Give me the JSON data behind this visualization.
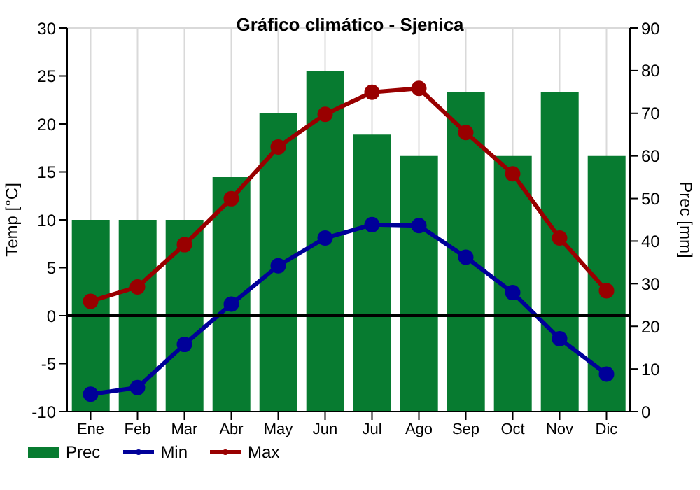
{
  "chart_data": {
    "type": "bar",
    "title": "Gráfico climático - Sjenica",
    "ylabel": "Temp [°C]",
    "y2label": "Prec [mm]",
    "categories": [
      "Ene",
      "Feb",
      "Mar",
      "Abr",
      "May",
      "Jun",
      "Jul",
      "Ago",
      "Sep",
      "Oct",
      "Nov",
      "Dic"
    ],
    "series": [
      {
        "name": "Prec",
        "axis": "y2",
        "color": "#077b30",
        "values": [
          45,
          45,
          45,
          55,
          70,
          80,
          65,
          60,
          75,
          60,
          75,
          60
        ]
      },
      {
        "name": "Min",
        "type": "line",
        "color": "#000099",
        "values": [
          -8.2,
          -7.5,
          -3,
          1.2,
          5.2,
          8.1,
          9.5,
          9.4,
          6.1,
          2.4,
          -2.4,
          -6.1
        ]
      },
      {
        "name": "Max",
        "type": "line",
        "color": "#990000",
        "values": [
          1.5,
          3,
          7.4,
          12.2,
          17.6,
          21,
          23.3,
          23.7,
          19.1,
          14.8,
          8.1,
          2.6
        ]
      }
    ],
    "ylim": [
      -10,
      30
    ],
    "yticks": [
      -10,
      -5,
      0,
      5,
      10,
      15,
      20,
      25,
      30
    ],
    "y2lim": [
      0,
      90
    ],
    "y2ticks": [
      0,
      10,
      20,
      30,
      40,
      50,
      60,
      70,
      80,
      90
    ],
    "ref_lines": [
      {
        "axis": "y",
        "value": 0,
        "color": "#000000"
      }
    ],
    "grid": true,
    "legend": "bottom left",
    "marker": "circle",
    "line_style": "solid"
  }
}
